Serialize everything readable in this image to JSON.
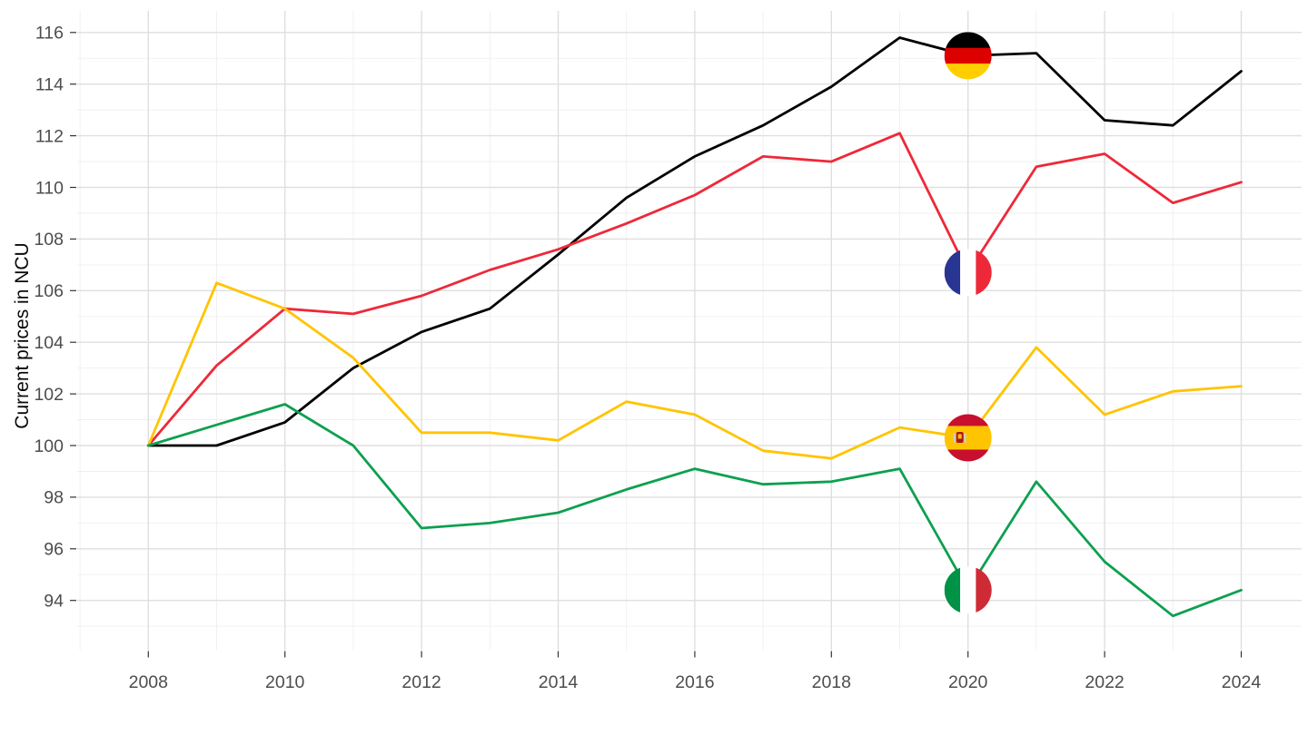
{
  "chart_data": {
    "type": "line",
    "title": "",
    "xlabel": "",
    "ylabel": "Current prices in NCU",
    "x": [
      2008,
      2009,
      2010,
      2011,
      2012,
      2013,
      2014,
      2015,
      2016,
      2017,
      2018,
      2019,
      2020,
      2021,
      2022,
      2023,
      2024
    ],
    "x_tick_labels": [
      "2008",
      "2010",
      "2012",
      "2014",
      "2016",
      "2018",
      "2020",
      "2022",
      "2024"
    ],
    "y_tick_labels": [
      "94",
      "96",
      "98",
      "100",
      "102",
      "104",
      "106",
      "108",
      "110",
      "112",
      "114",
      "116"
    ],
    "y_ticks": [
      94,
      96,
      98,
      100,
      102,
      104,
      106,
      108,
      110,
      112,
      114,
      116
    ],
    "xlim": [
      2006.95,
      2024.9
    ],
    "ylim": [
      92.2,
      117.1
    ],
    "grid": "major and minor, light gray on white",
    "legend_position": "none (circular flag markers on the 2020 data points)",
    "marker_year": 2020,
    "series": [
      {
        "name": "Germany",
        "line_color": "#000000",
        "flag": {
          "type": "horizontal",
          "colors": [
            "#000000",
            "#DD0000",
            "#FFCE00"
          ]
        },
        "values": [
          100,
          100,
          100.9,
          103.0,
          104.4,
          105.3,
          107.4,
          109.6,
          111.2,
          112.4,
          113.9,
          115.8,
          115.1,
          115.2,
          112.6,
          112.4,
          114.5
        ]
      },
      {
        "name": "France",
        "line_color": "#ED2939",
        "flag": {
          "type": "vertical",
          "colors": [
            "#283593",
            "#FFFFFF",
            "#ED2939"
          ]
        },
        "values": [
          100,
          103.1,
          105.3,
          105.1,
          105.8,
          106.8,
          107.6,
          108.6,
          109.7,
          111.2,
          111.0,
          112.1,
          106.7,
          110.8,
          111.3,
          109.4,
          110.2
        ]
      },
      {
        "name": "Spain",
        "line_color": "#FFC400",
        "flag": {
          "type": "horizontal-spain",
          "colors": [
            "#C8102E",
            "#FFC400",
            "#C8102E"
          ],
          "emblem": "#AD1519"
        },
        "values": [
          100,
          106.3,
          105.3,
          103.4,
          100.5,
          100.5,
          100.2,
          101.7,
          101.2,
          99.8,
          99.5,
          100.7,
          100.3,
          103.8,
          101.2,
          102.1,
          102.3
        ]
      },
      {
        "name": "Italy",
        "line_color": "#0DA04F",
        "flag": {
          "type": "vertical",
          "colors": [
            "#009246",
            "#FFFFFF",
            "#CE2B37"
          ]
        },
        "values": [
          100,
          100.8,
          101.6,
          100.0,
          96.8,
          97.0,
          97.4,
          98.3,
          99.1,
          98.5,
          98.6,
          99.1,
          94.4,
          98.6,
          95.5,
          93.4,
          94.4
        ]
      }
    ]
  },
  "style": {
    "grid_major_color": "#DFDFDF",
    "grid_minor_color": "#EDEDED",
    "tick_mark_color": "#333333",
    "tick_label_color": "#4d4d4d",
    "background": "#ffffff"
  }
}
